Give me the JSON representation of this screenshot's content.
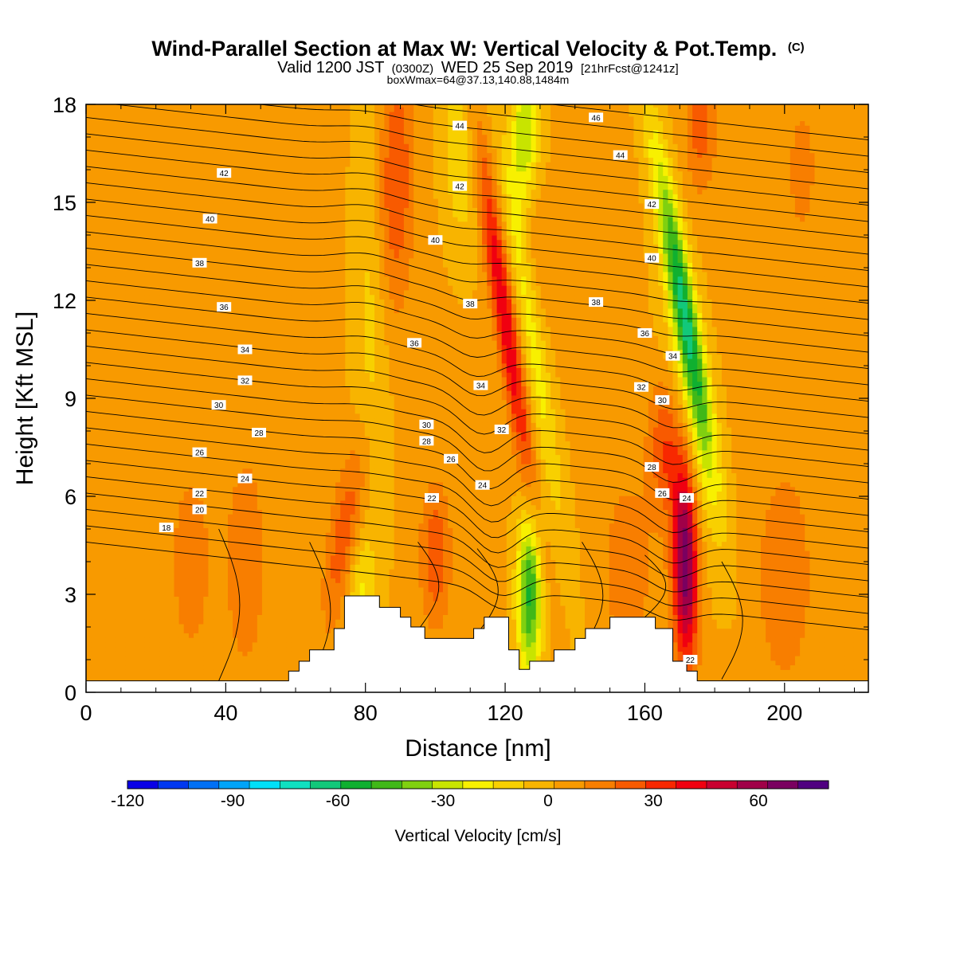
{
  "chart_data": {
    "type": "heatmap",
    "title": "Wind-Parallel Section at Max W: Vertical Velocity & Pot.Temp.",
    "title_suffix": "(C)",
    "subtitle_main_a": "Valid 1200 JST",
    "subtitle_small_a": "(0300Z)",
    "subtitle_main_b": "WED 25 Sep 2019",
    "subtitle_small_b": "[21hrFcst@1241z]",
    "subtitle2": "boxWmax=64@37.13,140.88,1484m",
    "xlabel": "Distance [nm]",
    "ylabel": "Height [Kft MSL]",
    "xlim": [
      0,
      224
    ],
    "ylim": [
      0,
      18
    ],
    "xticks": [
      0,
      40,
      80,
      120,
      160,
      200
    ],
    "yticks": [
      0,
      3,
      6,
      9,
      12,
      15,
      18
    ],
    "colorbar": {
      "label": "Vertical Velocity [cm/s]",
      "range": [
        -120,
        80
      ],
      "ticks": [
        -120,
        -90,
        -60,
        -30,
        0,
        30,
        60
      ],
      "colors": [
        "#0a00e6",
        "#0038f0",
        "#0070f5",
        "#00a4f8",
        "#00e0f8",
        "#10e0c0",
        "#12c87a",
        "#10b030",
        "#40b818",
        "#80d010",
        "#c8e400",
        "#f8f000",
        "#f8d000",
        "#f8b400",
        "#f89a00",
        "#f87e00",
        "#f85a00",
        "#f82800",
        "#f00010",
        "#c80030",
        "#a00048",
        "#7a0060",
        "#500080"
      ]
    },
    "terrain": [
      [
        0,
        0.35
      ],
      [
        58,
        0.35
      ],
      [
        58,
        0.65
      ],
      [
        61,
        0.65
      ],
      [
        61,
        0.95
      ],
      [
        64,
        0.95
      ],
      [
        64,
        1.3
      ],
      [
        71,
        1.3
      ],
      [
        71,
        1.95
      ],
      [
        74,
        1.95
      ],
      [
        74,
        2.95
      ],
      [
        84,
        2.95
      ],
      [
        84,
        2.6
      ],
      [
        90,
        2.6
      ],
      [
        90,
        2.3
      ],
      [
        93,
        2.3
      ],
      [
        93,
        2.0
      ],
      [
        97,
        2.0
      ],
      [
        97,
        1.65
      ],
      [
        111,
        1.65
      ],
      [
        111,
        1.95
      ],
      [
        114,
        1.95
      ],
      [
        114,
        2.3
      ],
      [
        121,
        2.3
      ],
      [
        121,
        1.3
      ],
      [
        124,
        1.3
      ],
      [
        124,
        0.7
      ],
      [
        127,
        0.7
      ],
      [
        127,
        0.95
      ],
      [
        134,
        0.95
      ],
      [
        134,
        1.3
      ],
      [
        140,
        1.3
      ],
      [
        140,
        1.65
      ],
      [
        143,
        1.65
      ],
      [
        143,
        1.95
      ],
      [
        150,
        1.95
      ],
      [
        150,
        2.3
      ],
      [
        163,
        2.3
      ],
      [
        163,
        1.95
      ],
      [
        168,
        1.95
      ],
      [
        168,
        0.95
      ],
      [
        172,
        0.95
      ],
      [
        172,
        0.65
      ],
      [
        175,
        0.65
      ],
      [
        175,
        0.35
      ],
      [
        224,
        0.35
      ]
    ],
    "isentrope_labels": [
      {
        "text": "18",
        "x": 23,
        "y": 5.05
      },
      {
        "text": "20",
        "x": 32.5,
        "y": 5.6
      },
      {
        "text": "22",
        "x": 32.5,
        "y": 6.1
      },
      {
        "text": "24",
        "x": 45.5,
        "y": 6.55
      },
      {
        "text": "26",
        "x": 32.5,
        "y": 7.35
      },
      {
        "text": "28",
        "x": 49.5,
        "y": 7.95
      },
      {
        "text": "30",
        "x": 38,
        "y": 8.8
      },
      {
        "text": "32",
        "x": 45.5,
        "y": 9.55
      },
      {
        "text": "34",
        "x": 45.5,
        "y": 10.5
      },
      {
        "text": "36",
        "x": 39.5,
        "y": 11.8
      },
      {
        "text": "38",
        "x": 32.5,
        "y": 13.15
      },
      {
        "text": "40",
        "x": 35.5,
        "y": 14.5
      },
      {
        "text": "42",
        "x": 39.5,
        "y": 15.9
      },
      {
        "text": "22",
        "x": 99,
        "y": 5.95
      },
      {
        "text": "24",
        "x": 113.5,
        "y": 6.35
      },
      {
        "text": "26",
        "x": 104.5,
        "y": 7.15
      },
      {
        "text": "28",
        "x": 97.5,
        "y": 7.7
      },
      {
        "text": "30",
        "x": 97.5,
        "y": 8.2
      },
      {
        "text": "32",
        "x": 119,
        "y": 8.05
      },
      {
        "text": "34",
        "x": 113,
        "y": 9.4
      },
      {
        "text": "36",
        "x": 94,
        "y": 10.7
      },
      {
        "text": "38",
        "x": 110,
        "y": 11.9
      },
      {
        "text": "40",
        "x": 100,
        "y": 13.85
      },
      {
        "text": "42",
        "x": 107,
        "y": 15.5
      },
      {
        "text": "44",
        "x": 107,
        "y": 17.35
      },
      {
        "text": "46",
        "x": 146,
        "y": 17.6
      },
      {
        "text": "44",
        "x": 153,
        "y": 16.45
      },
      {
        "text": "42",
        "x": 162,
        "y": 14.95
      },
      {
        "text": "40",
        "x": 162,
        "y": 13.3
      },
      {
        "text": "38",
        "x": 146,
        "y": 11.95
      },
      {
        "text": "36",
        "x": 160,
        "y": 11.0
      },
      {
        "text": "34",
        "x": 168,
        "y": 10.3
      },
      {
        "text": "32",
        "x": 159,
        "y": 9.35
      },
      {
        "text": "30",
        "x": 165,
        "y": 8.95
      },
      {
        "text": "28",
        "x": 162,
        "y": 6.9
      },
      {
        "text": "26",
        "x": 165,
        "y": 6.1
      },
      {
        "text": "24",
        "x": 172,
        "y": 5.95
      },
      {
        "text": "22",
        "x": 173,
        "y": 1.0
      }
    ]
  }
}
